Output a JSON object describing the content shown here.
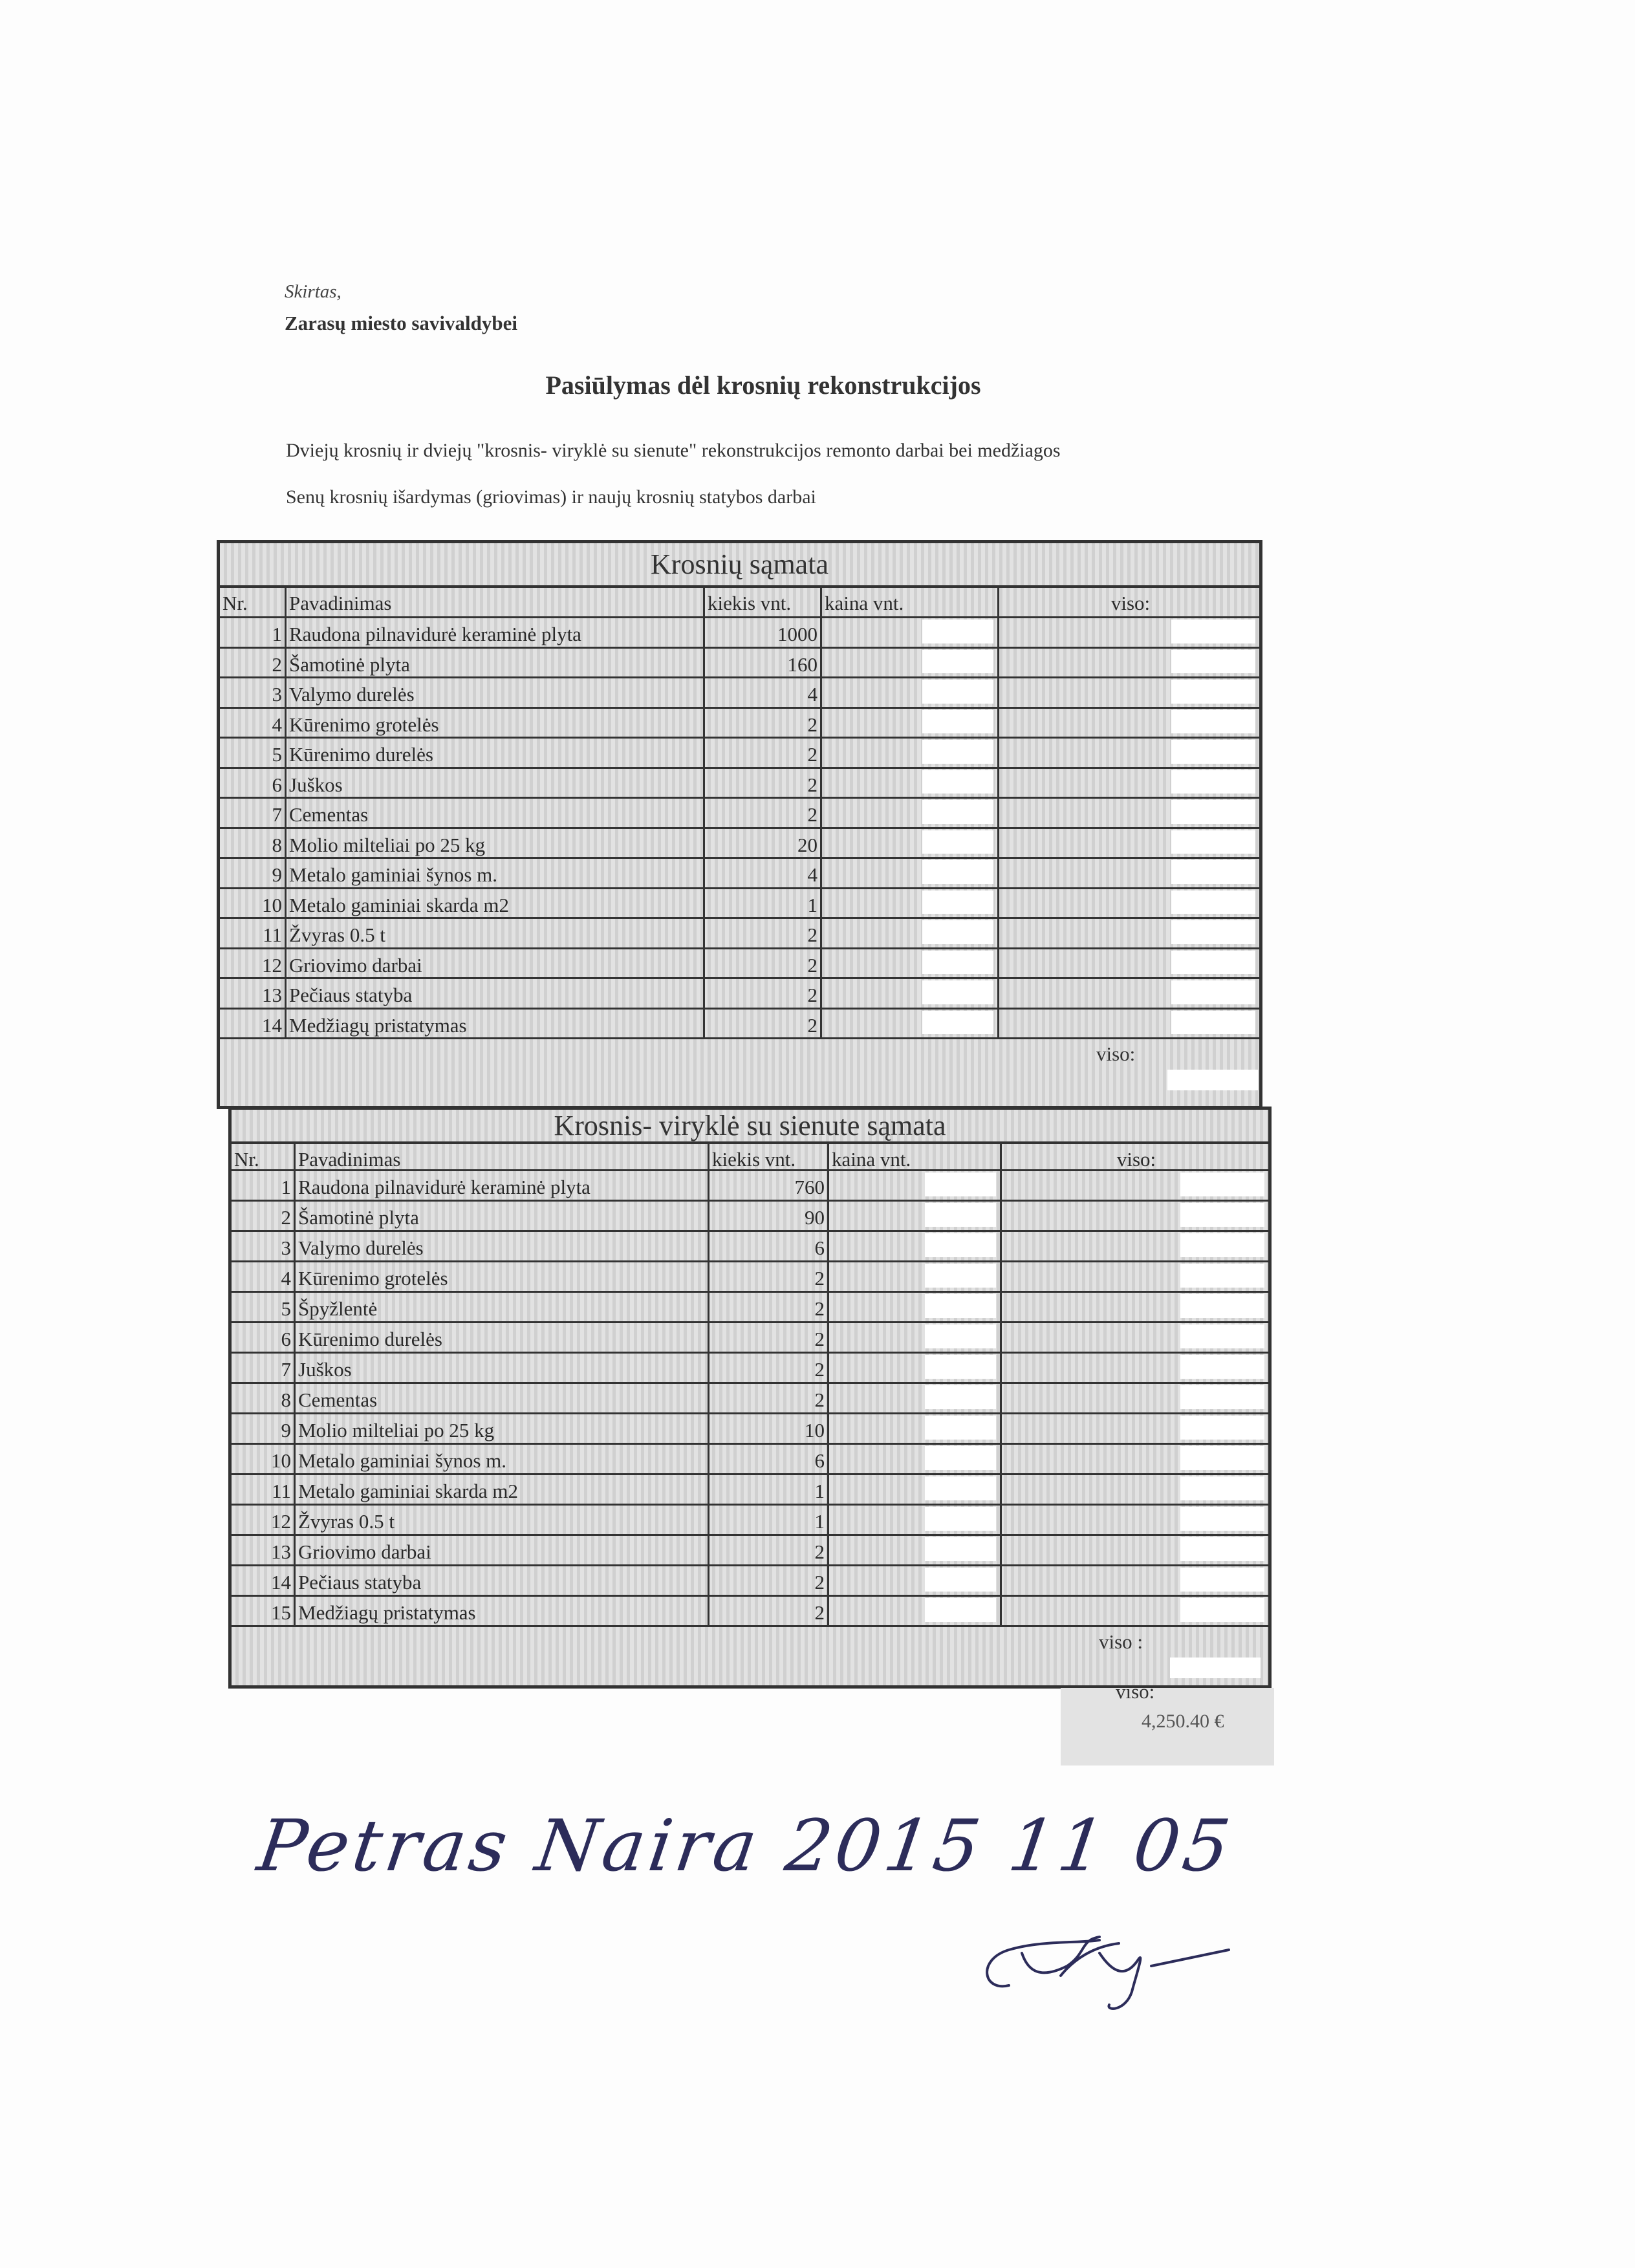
{
  "header": {
    "addressee_label": "Skirtas,",
    "addressee": "Zarasų miesto savivaldybei",
    "title": "Pasiūlymas dėl krosnių rekonstrukcijos",
    "paragraph1": "Dviejų krosnių ir dviejų \"krosnis- viryklė su sienute\" rekonstrukcijos remonto darbai bei medžiagos",
    "paragraph2": "Senų krosnių išardymas (griovimas)  ir naujų krosnių statybos darbai"
  },
  "tables": [
    {
      "title": "Krosnių sąmata",
      "columns": [
        "Nr.",
        "Pavadinimas",
        "kiekis vnt.",
        "kaina vnt.",
        "viso:"
      ],
      "rows": [
        [
          "1",
          "Raudona pilnavidurė keraminė plyta",
          "1000"
        ],
        [
          "2",
          "Šamotinė plyta",
          "160"
        ],
        [
          "3",
          "Valymo durelės",
          "4"
        ],
        [
          "4",
          "Kūrenimo grotelės",
          "2"
        ],
        [
          "5",
          "Kūrenimo durelės",
          "2"
        ],
        [
          "6",
          "Juškos",
          "2"
        ],
        [
          "7",
          "Cementas",
          "2"
        ],
        [
          "8",
          "Molio milteliai po 25 kg",
          "20"
        ],
        [
          "9",
          "Metalo gaminiai šynos m.",
          "4"
        ],
        [
          "10",
          "Metalo gaminiai skarda m2",
          "1"
        ],
        [
          "11",
          "Žvyras 0.5 t",
          "2"
        ],
        [
          "12",
          "Griovimo darbai",
          "2"
        ],
        [
          "13",
          "Pečiaus statyba",
          "2"
        ],
        [
          "14",
          "Medžiagų pristatymas",
          "2"
        ]
      ],
      "total_label": "viso:"
    },
    {
      "title": "Krosnis- viryklė su sienute sąmata",
      "columns": [
        "Nr.",
        "Pavadinimas",
        "kiekis vnt.",
        "kaina vnt.",
        "viso:"
      ],
      "rows": [
        [
          "1",
          "Raudona pilnavidurė keraminė plyta",
          "760"
        ],
        [
          "2",
          "Šamotinė plyta",
          "90"
        ],
        [
          "3",
          "Valymo durelės",
          "6"
        ],
        [
          "4",
          "Kūrenimo grotelės",
          "2"
        ],
        [
          "5",
          "Špyžlentė",
          "2"
        ],
        [
          "6",
          "Kūrenimo durelės",
          "2"
        ],
        [
          "7",
          "Juškos",
          "2"
        ],
        [
          "8",
          "Cementas",
          "2"
        ],
        [
          "9",
          "Molio milteliai po 25 kg",
          "10"
        ],
        [
          "10",
          "Metalo gaminiai šynos m.",
          "6"
        ],
        [
          "11",
          "Metalo gaminiai skarda m2",
          "1"
        ],
        [
          "12",
          "Žvyras 0.5 t",
          "1"
        ],
        [
          "13",
          "Griovimo darbai",
          "2"
        ],
        [
          "14",
          "Pečiaus statyba",
          "2"
        ],
        [
          "15",
          "Medžiagų pristatymas",
          "2"
        ]
      ],
      "total_label": "viso :"
    }
  ],
  "grand_total": {
    "label": "viso:",
    "value": "4,250.40 €"
  },
  "handwriting": "Petras Naira 2015 11 05",
  "colors": {
    "ink": "#2a2a2a",
    "table_bg": "#d8d8d8",
    "pen": "#2c2c5a"
  }
}
